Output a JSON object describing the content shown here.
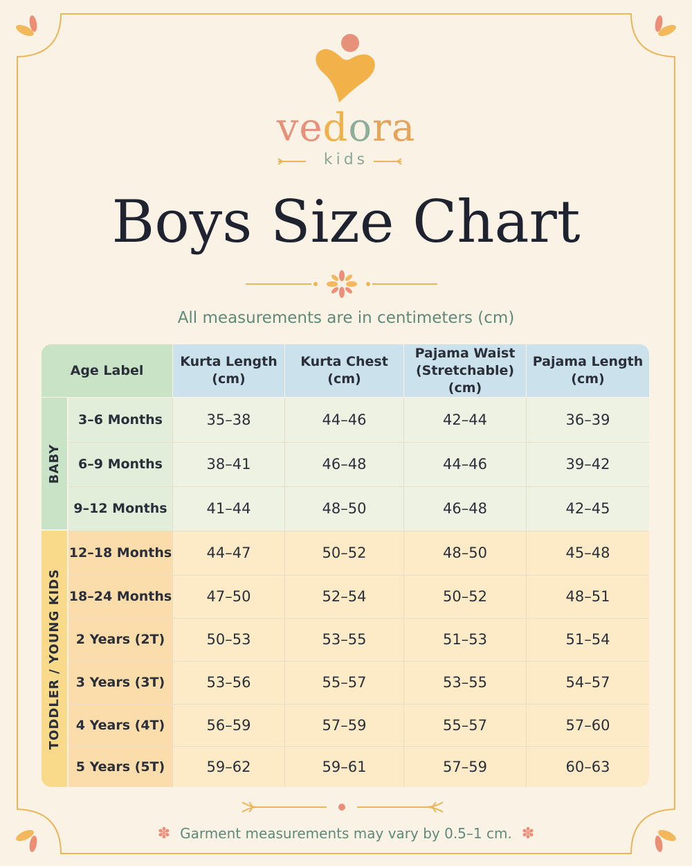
{
  "brand": {
    "logo_icon": "heart-person-icon",
    "name_parts": [
      "ve",
      "d",
      "o",
      "ra"
    ],
    "sub": "kids"
  },
  "title": "Boys Size Chart",
  "subtitle": "All measurements are in centimeters (cm)",
  "table": {
    "headers": [
      {
        "line1": "Age Label",
        "line2": ""
      },
      {
        "line1": "Kurta Length",
        "line2": "(cm)"
      },
      {
        "line1": "Kurta Chest",
        "line2": "(cm)"
      },
      {
        "line1": "Pajama Waist",
        "line2": "(Stretchable) (cm)"
      },
      {
        "line1": "Pajama Length",
        "line2": "(cm)"
      }
    ],
    "groups": [
      {
        "label": "BABY",
        "rows": [
          {
            "age": "3–6 Months",
            "values": [
              "35–38",
              "44–46",
              "42–44",
              "36–39"
            ]
          },
          {
            "age": "6–9 Months",
            "values": [
              "38–41",
              "46–48",
              "44–46",
              "39–42"
            ]
          },
          {
            "age": "9–12 Months",
            "values": [
              "41–44",
              "48–50",
              "46–48",
              "42–45"
            ]
          }
        ]
      },
      {
        "label": "TODDLER / YOUNG KIDS",
        "rows": [
          {
            "age": "12–18 Months",
            "values": [
              "44–47",
              "50–52",
              "48–50",
              "45–48"
            ]
          },
          {
            "age": "18–24 Months",
            "values": [
              "47–50",
              "52–54",
              "50–52",
              "48–51"
            ]
          },
          {
            "age": "2 Years (2T)",
            "values": [
              "50–53",
              "53–55",
              "51–53",
              "51–54"
            ]
          },
          {
            "age": "3 Years (3T)",
            "values": [
              "53–56",
              "55–57",
              "53–55",
              "54–57"
            ]
          },
          {
            "age": "4 Years (4T)",
            "values": [
              "56–59",
              "57–59",
              "55–57",
              "57–60"
            ]
          },
          {
            "age": "5 Years (5T)",
            "values": [
              "59–62",
              "59–61",
              "57–59",
              "60–63"
            ]
          }
        ]
      }
    ]
  },
  "footnote": {
    "text": "Garment measurements may vary by 0.5–1 cm.",
    "flower": "✽"
  },
  "colors": {
    "background": "#fbf2e6",
    "frame": "#eab65a",
    "header_blue": "#cbe1ec",
    "header_green": "#c9e3c6",
    "baby_row": "#eef2e3",
    "toddler_row": "#fdebc8",
    "toddler_label": "#f9d98a"
  }
}
